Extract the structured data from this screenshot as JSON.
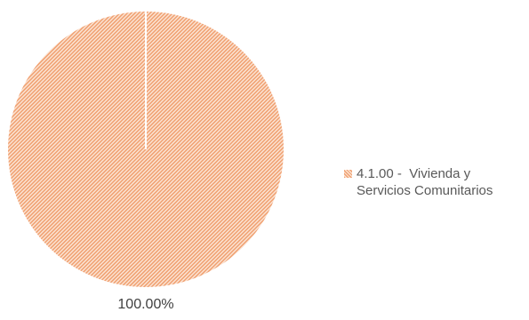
{
  "chart_data": {
    "type": "pie",
    "categories": [
      "4.1.00 -  Vivienda y Servicios Comunitarios"
    ],
    "values": [
      100
    ],
    "data_labels": [
      "100.00%"
    ],
    "legend": "right",
    "colors": {
      "slice": "#f0a070",
      "slice_light": "#fbe3d3",
      "separator": "#ffffff"
    }
  }
}
